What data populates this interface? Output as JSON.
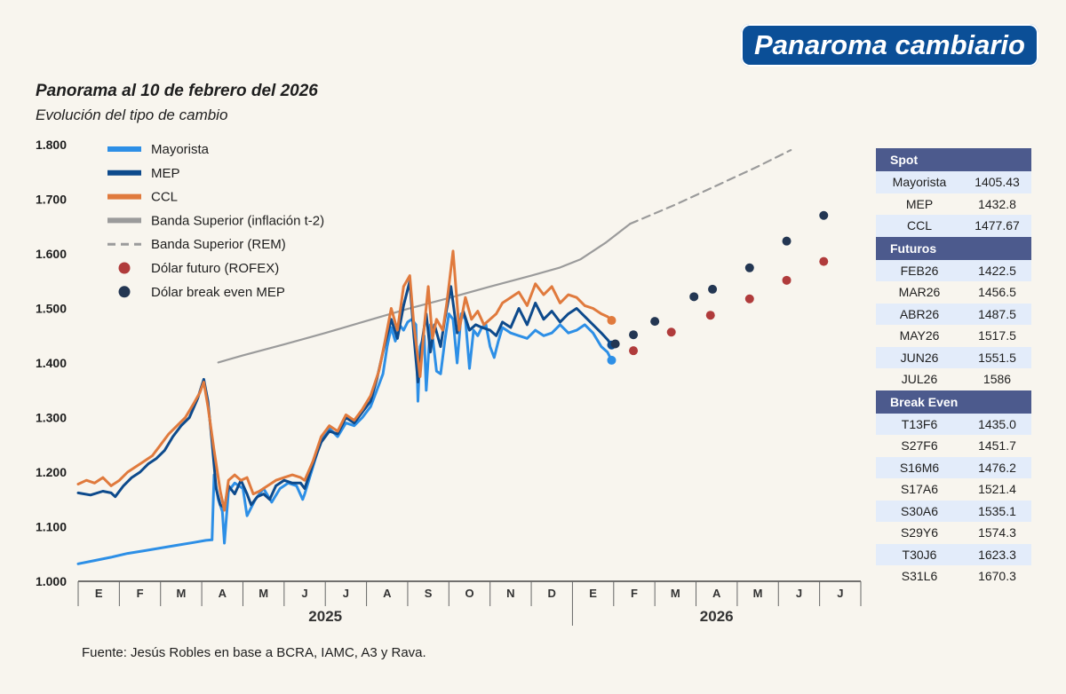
{
  "brand": "Panaroma cambiario",
  "title": "Panorama al 10 de febrero del 2026",
  "subtitle": "Evolución del tipo de cambio",
  "source": "Fuente: Jesús Robles en base a BCRA, IAMC, A3 y Rava.",
  "colors": {
    "mayorista": "#2d8fe6",
    "mep": "#0d4a8c",
    "ccl": "#e07a3d",
    "banda": "#9b9b9b",
    "rofex": "#b03b3b",
    "breakeven": "#233652",
    "table_header": "#4c5a8d",
    "table_alt": "#e3ecfa"
  },
  "chart_data": {
    "type": "line",
    "ylim": [
      1000,
      1800
    ],
    "yticks": [
      "1.000",
      "1.100",
      "1.200",
      "1.300",
      "1.400",
      "1.500",
      "1.600",
      "1.700",
      "1.800"
    ],
    "ytick_values": [
      1000,
      1100,
      1200,
      1300,
      1400,
      1500,
      1600,
      1700,
      1800
    ],
    "x_months": [
      "E",
      "F",
      "M",
      "A",
      "M",
      "J",
      "J",
      "A",
      "S",
      "O",
      "N",
      "D",
      "E",
      "F",
      "M",
      "A",
      "M",
      "J",
      "J"
    ],
    "x_years": [
      "2025",
      "2026"
    ],
    "legend": [
      {
        "label": "Mayorista",
        "kind": "line",
        "color_key": "mayorista"
      },
      {
        "label": "MEP",
        "kind": "line",
        "color_key": "mep"
      },
      {
        "label": "CCL",
        "kind": "line",
        "color_key": "ccl"
      },
      {
        "label": "Banda Superior (inflación t-2)",
        "kind": "line",
        "color_key": "banda"
      },
      {
        "label": "Banda Superior (REM)",
        "kind": "dash",
        "color_key": "banda"
      },
      {
        "label": "Dólar futuro (ROFEX)",
        "kind": "dot",
        "color_key": "rofex"
      },
      {
        "label": "Dólar break even MEP",
        "kind": "dot",
        "color_key": "breakeven"
      }
    ],
    "series": [
      {
        "name": "Mayorista",
        "points": [
          [
            0,
            1032
          ],
          [
            0.4,
            1038
          ],
          [
            0.8,
            1044
          ],
          [
            1.2,
            1051
          ],
          [
            1.6,
            1056
          ],
          [
            2.0,
            1061
          ],
          [
            2.4,
            1066
          ],
          [
            2.8,
            1071
          ],
          [
            3.1,
            1075
          ],
          [
            3.25,
            1076
          ],
          [
            3.3,
            1195
          ],
          [
            3.4,
            1150
          ],
          [
            3.5,
            1128
          ],
          [
            3.55,
            1070
          ],
          [
            3.65,
            1165
          ],
          [
            3.8,
            1180
          ],
          [
            4.0,
            1170
          ],
          [
            4.1,
            1120
          ],
          [
            4.3,
            1150
          ],
          [
            4.5,
            1170
          ],
          [
            4.7,
            1145
          ],
          [
            4.9,
            1170
          ],
          [
            5.1,
            1180
          ],
          [
            5.3,
            1175
          ],
          [
            5.45,
            1150
          ],
          [
            5.5,
            1160
          ],
          [
            5.7,
            1210
          ],
          [
            5.9,
            1260
          ],
          [
            6.1,
            1280
          ],
          [
            6.3,
            1265
          ],
          [
            6.5,
            1290
          ],
          [
            6.7,
            1285
          ],
          [
            6.9,
            1300
          ],
          [
            7.1,
            1320
          ],
          [
            7.2,
            1340
          ],
          [
            7.4,
            1380
          ],
          [
            7.5,
            1430
          ],
          [
            7.6,
            1465
          ],
          [
            7.7,
            1440
          ],
          [
            7.8,
            1470
          ],
          [
            7.9,
            1460
          ],
          [
            8.0,
            1475
          ],
          [
            8.1,
            1480
          ],
          [
            8.2,
            1470
          ],
          [
            8.25,
            1330
          ],
          [
            8.3,
            1430
          ],
          [
            8.4,
            1450
          ],
          [
            8.45,
            1350
          ],
          [
            8.55,
            1470
          ],
          [
            8.6,
            1450
          ],
          [
            8.7,
            1385
          ],
          [
            8.8,
            1380
          ],
          [
            8.9,
            1440
          ],
          [
            9.0,
            1490
          ],
          [
            9.1,
            1480
          ],
          [
            9.2,
            1400
          ],
          [
            9.3,
            1490
          ],
          [
            9.4,
            1480
          ],
          [
            9.5,
            1390
          ],
          [
            9.6,
            1460
          ],
          [
            9.7,
            1450
          ],
          [
            9.8,
            1465
          ],
          [
            9.9,
            1470
          ],
          [
            10.0,
            1430
          ],
          [
            10.1,
            1410
          ],
          [
            10.2,
            1440
          ],
          [
            10.3,
            1465
          ],
          [
            10.5,
            1455
          ],
          [
            10.7,
            1450
          ],
          [
            10.9,
            1445
          ],
          [
            11.1,
            1460
          ],
          [
            11.3,
            1450
          ],
          [
            11.5,
            1455
          ],
          [
            11.7,
            1470
          ],
          [
            11.9,
            1455
          ],
          [
            12.1,
            1460
          ],
          [
            12.3,
            1470
          ],
          [
            12.5,
            1455
          ],
          [
            12.7,
            1430
          ],
          [
            12.85,
            1420
          ],
          [
            12.95,
            1405
          ]
        ]
      },
      {
        "name": "MEP",
        "points": [
          [
            0,
            1162
          ],
          [
            0.3,
            1158
          ],
          [
            0.6,
            1165
          ],
          [
            0.8,
            1162
          ],
          [
            0.9,
            1155
          ],
          [
            1.1,
            1175
          ],
          [
            1.3,
            1190
          ],
          [
            1.5,
            1200
          ],
          [
            1.7,
            1215
          ],
          [
            1.9,
            1225
          ],
          [
            2.1,
            1240
          ],
          [
            2.3,
            1265
          ],
          [
            2.5,
            1285
          ],
          [
            2.7,
            1300
          ],
          [
            2.9,
            1335
          ],
          [
            3.05,
            1370
          ],
          [
            3.15,
            1330
          ],
          [
            3.25,
            1255
          ],
          [
            3.35,
            1170
          ],
          [
            3.45,
            1140
          ],
          [
            3.55,
            1135
          ],
          [
            3.65,
            1175
          ],
          [
            3.8,
            1160
          ],
          [
            3.95,
            1185
          ],
          [
            4.1,
            1160
          ],
          [
            4.2,
            1140
          ],
          [
            4.35,
            1155
          ],
          [
            4.5,
            1160
          ],
          [
            4.65,
            1150
          ],
          [
            4.8,
            1175
          ],
          [
            5.0,
            1185
          ],
          [
            5.2,
            1180
          ],
          [
            5.4,
            1180
          ],
          [
            5.5,
            1170
          ],
          [
            5.7,
            1215
          ],
          [
            5.9,
            1255
          ],
          [
            6.1,
            1275
          ],
          [
            6.3,
            1270
          ],
          [
            6.5,
            1300
          ],
          [
            6.7,
            1290
          ],
          [
            6.9,
            1310
          ],
          [
            7.1,
            1330
          ],
          [
            7.25,
            1370
          ],
          [
            7.4,
            1420
          ],
          [
            7.6,
            1480
          ],
          [
            7.75,
            1445
          ],
          [
            7.9,
            1505
          ],
          [
            8.05,
            1550
          ],
          [
            8.15,
            1450
          ],
          [
            8.25,
            1365
          ],
          [
            8.35,
            1440
          ],
          [
            8.45,
            1490
          ],
          [
            8.55,
            1420
          ],
          [
            8.65,
            1470
          ],
          [
            8.8,
            1430
          ],
          [
            8.9,
            1480
          ],
          [
            9.05,
            1540
          ],
          [
            9.2,
            1455
          ],
          [
            9.35,
            1495
          ],
          [
            9.5,
            1460
          ],
          [
            9.65,
            1470
          ],
          [
            9.8,
            1465
          ],
          [
            10.0,
            1460
          ],
          [
            10.15,
            1450
          ],
          [
            10.3,
            1475
          ],
          [
            10.5,
            1465
          ],
          [
            10.7,
            1500
          ],
          [
            10.9,
            1470
          ],
          [
            11.1,
            1510
          ],
          [
            11.3,
            1480
          ],
          [
            11.5,
            1495
          ],
          [
            11.7,
            1475
          ],
          [
            11.9,
            1490
          ],
          [
            12.1,
            1500
          ],
          [
            12.3,
            1485
          ],
          [
            12.5,
            1470
          ],
          [
            12.7,
            1455
          ],
          [
            12.85,
            1443
          ],
          [
            12.95,
            1433
          ]
        ]
      },
      {
        "name": "CCL",
        "points": [
          [
            0,
            1178
          ],
          [
            0.2,
            1185
          ],
          [
            0.4,
            1180
          ],
          [
            0.6,
            1190
          ],
          [
            0.8,
            1175
          ],
          [
            1.0,
            1185
          ],
          [
            1.2,
            1200
          ],
          [
            1.4,
            1210
          ],
          [
            1.6,
            1220
          ],
          [
            1.8,
            1230
          ],
          [
            2.0,
            1250
          ],
          [
            2.2,
            1270
          ],
          [
            2.4,
            1285
          ],
          [
            2.6,
            1300
          ],
          [
            2.8,
            1325
          ],
          [
            2.95,
            1345
          ],
          [
            3.05,
            1365
          ],
          [
            3.15,
            1320
          ],
          [
            3.3,
            1240
          ],
          [
            3.45,
            1165
          ],
          [
            3.55,
            1130
          ],
          [
            3.65,
            1185
          ],
          [
            3.8,
            1195
          ],
          [
            3.95,
            1185
          ],
          [
            4.1,
            1190
          ],
          [
            4.25,
            1160
          ],
          [
            4.4,
            1165
          ],
          [
            4.6,
            1175
          ],
          [
            4.8,
            1185
          ],
          [
            5.0,
            1190
          ],
          [
            5.2,
            1195
          ],
          [
            5.4,
            1190
          ],
          [
            5.5,
            1185
          ],
          [
            5.7,
            1220
          ],
          [
            5.9,
            1265
          ],
          [
            6.1,
            1285
          ],
          [
            6.3,
            1275
          ],
          [
            6.5,
            1305
          ],
          [
            6.7,
            1295
          ],
          [
            6.9,
            1315
          ],
          [
            7.1,
            1340
          ],
          [
            7.3,
            1385
          ],
          [
            7.45,
            1440
          ],
          [
            7.6,
            1500
          ],
          [
            7.75,
            1460
          ],
          [
            7.9,
            1540
          ],
          [
            8.05,
            1560
          ],
          [
            8.15,
            1470
          ],
          [
            8.3,
            1375
          ],
          [
            8.4,
            1465
          ],
          [
            8.5,
            1540
          ],
          [
            8.6,
            1445
          ],
          [
            8.7,
            1480
          ],
          [
            8.85,
            1460
          ],
          [
            8.95,
            1510
          ],
          [
            9.1,
            1605
          ],
          [
            9.25,
            1460
          ],
          [
            9.4,
            1520
          ],
          [
            9.55,
            1480
          ],
          [
            9.7,
            1495
          ],
          [
            9.85,
            1470
          ],
          [
            10.0,
            1480
          ],
          [
            10.15,
            1490
          ],
          [
            10.3,
            1510
          ],
          [
            10.5,
            1520
          ],
          [
            10.7,
            1530
          ],
          [
            10.9,
            1505
          ],
          [
            11.1,
            1545
          ],
          [
            11.3,
            1525
          ],
          [
            11.5,
            1540
          ],
          [
            11.7,
            1510
          ],
          [
            11.9,
            1525
          ],
          [
            12.1,
            1520
          ],
          [
            12.3,
            1505
          ],
          [
            12.5,
            1500
          ],
          [
            12.7,
            1490
          ],
          [
            12.85,
            1485
          ],
          [
            12.95,
            1478
          ]
        ]
      },
      {
        "name": "Banda Superior (inflación t-2)",
        "points": [
          [
            3.4,
            1401
          ],
          [
            4,
            1414
          ],
          [
            5,
            1434
          ],
          [
            6,
            1455
          ],
          [
            7,
            1477
          ],
          [
            8,
            1499
          ],
          [
            9,
            1519
          ],
          [
            10,
            1540
          ],
          [
            11,
            1560
          ],
          [
            11.7,
            1575
          ],
          [
            12.2,
            1590
          ],
          [
            12.8,
            1620
          ],
          [
            13.4,
            1655
          ]
        ]
      },
      {
        "name": "Banda Superior (REM)",
        "points": [
          [
            13.4,
            1655
          ],
          [
            14.5,
            1690
          ],
          [
            15.5,
            1725
          ],
          [
            16.5,
            1760
          ],
          [
            17.3,
            1790
          ]
        ]
      },
      {
        "name": "Dólar futuro (ROFEX)",
        "points": [
          [
            13.48,
            1422.5
          ],
          [
            14.4,
            1456.5
          ],
          [
            15.35,
            1487.5
          ],
          [
            16.3,
            1517.5
          ],
          [
            17.2,
            1551.5
          ],
          [
            18.1,
            1586
          ]
        ]
      },
      {
        "name": "Dólar break even MEP",
        "points": [
          [
            13.04,
            1435.0
          ],
          [
            13.48,
            1451.7
          ],
          [
            14.0,
            1476.2
          ],
          [
            14.95,
            1521.4
          ],
          [
            15.4,
            1535.1
          ],
          [
            16.3,
            1574.3
          ],
          [
            17.2,
            1623.3
          ],
          [
            18.1,
            1670.3
          ]
        ]
      }
    ]
  },
  "table": {
    "spot_header": "Spot",
    "spot": [
      [
        "Mayorista",
        "1405.43"
      ],
      [
        "MEP",
        "1432.8"
      ],
      [
        "CCL",
        "1477.67"
      ]
    ],
    "futuros_header": "Futuros",
    "futuros": [
      [
        "FEB26",
        "1422.5"
      ],
      [
        "MAR26",
        "1456.5"
      ],
      [
        "ABR26",
        "1487.5"
      ],
      [
        "MAY26",
        "1517.5"
      ],
      [
        "JUN26",
        "1551.5"
      ],
      [
        "JUL26",
        "1586"
      ]
    ],
    "break_header": "Break Even",
    "break_even": [
      [
        "T13F6",
        "1435.0"
      ],
      [
        "S27F6",
        "1451.7"
      ],
      [
        "S16M6",
        "1476.2"
      ],
      [
        "S17A6",
        "1521.4"
      ],
      [
        "S30A6",
        "1535.1"
      ],
      [
        "S29Y6",
        "1574.3"
      ],
      [
        "T30J6",
        "1623.3"
      ],
      [
        "S31L6",
        "1670.3"
      ]
    ]
  }
}
